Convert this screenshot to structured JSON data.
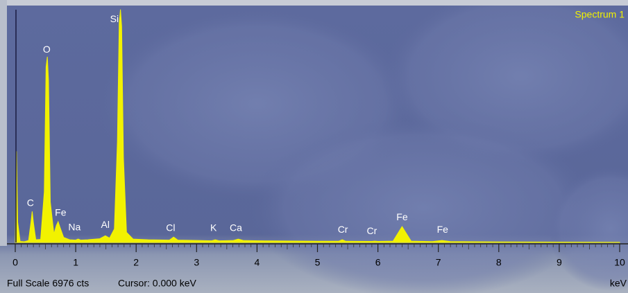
{
  "chart_data": {
    "type": "area",
    "title": "Spectrum 1",
    "x_unit": "keV",
    "full_scale_label": "Full Scale 6976 cts",
    "cursor_label": "Cursor: 0.000 keV",
    "color": "#f2f200",
    "cursor_color": "#1a1a40",
    "xlim": [
      0,
      10
    ],
    "ylim": [
      0,
      6976
    ],
    "xticks": [
      0,
      1,
      2,
      3,
      4,
      5,
      6,
      7,
      8,
      9,
      10
    ],
    "minor_ticks_per_major": 10,
    "x": [
      0,
      0.02,
      0.04,
      0.08,
      0.15,
      0.22,
      0.26,
      0.28,
      0.3,
      0.34,
      0.42,
      0.48,
      0.51,
      0.53,
      0.55,
      0.58,
      0.64,
      0.68,
      0.71,
      0.74,
      0.8,
      0.9,
      1.0,
      1.04,
      1.08,
      1.2,
      1.4,
      1.49,
      1.56,
      1.64,
      1.69,
      1.72,
      1.74,
      1.76,
      1.79,
      1.84,
      1.95,
      2.2,
      2.55,
      2.62,
      2.69,
      3.0,
      3.25,
      3.31,
      3.37,
      3.6,
      3.69,
      3.78,
      4.2,
      5.0,
      5.35,
      5.41,
      5.47,
      5.9,
      5.95,
      6.0,
      6.25,
      6.4,
      6.55,
      6.9,
      7.06,
      7.2,
      8.0,
      9.0,
      10.0
    ],
    "values": [
      0,
      2700,
      600,
      30,
      20,
      60,
      600,
      920,
      600,
      80,
      90,
      1500,
      5200,
      5500,
      4800,
      1200,
      250,
      500,
      615,
      450,
      150,
      80,
      70,
      100,
      70,
      80,
      110,
      200,
      130,
      400,
      3000,
      6500,
      6900,
      6400,
      2500,
      300,
      100,
      80,
      70,
      160,
      70,
      60,
      50,
      80,
      50,
      55,
      100,
      55,
      45,
      35,
      35,
      80,
      35,
      30,
      40,
      30,
      40,
      470,
      40,
      25,
      60,
      25,
      15,
      10,
      5
    ],
    "annotations": [
      {
        "text": "C",
        "x": 0.25,
        "y": 1150
      },
      {
        "text": "O",
        "x": 0.52,
        "y": 5700
      },
      {
        "text": "Fe",
        "x": 0.75,
        "y": 870
      },
      {
        "text": "Na",
        "x": 0.98,
        "y": 440
      },
      {
        "text": "Al",
        "x": 1.49,
        "y": 510
      },
      {
        "text": "Si",
        "x": 1.64,
        "y": 6600
      },
      {
        "text": "Cl",
        "x": 2.57,
        "y": 410
      },
      {
        "text": "K",
        "x": 3.28,
        "y": 410
      },
      {
        "text": "Ca",
        "x": 3.65,
        "y": 410
      },
      {
        "text": "Cr",
        "x": 5.42,
        "y": 360
      },
      {
        "text": "Cr",
        "x": 5.9,
        "y": 320
      },
      {
        "text": "Fe",
        "x": 6.4,
        "y": 730
      },
      {
        "text": "Fe",
        "x": 7.07,
        "y": 360
      }
    ]
  }
}
